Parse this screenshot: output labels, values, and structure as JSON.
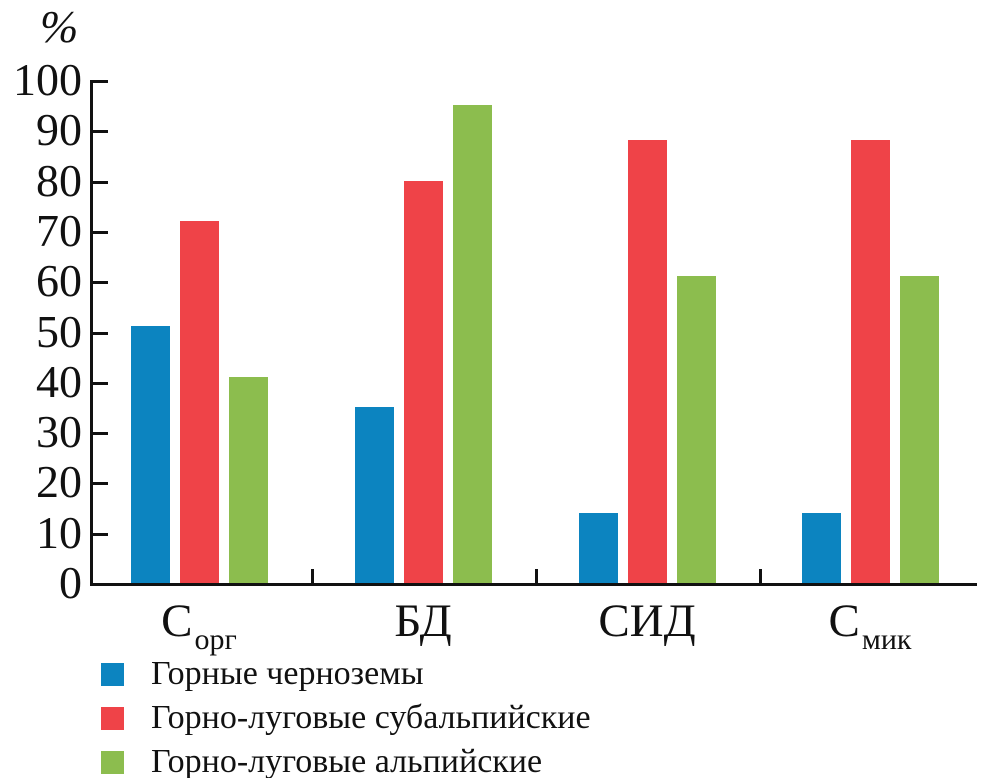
{
  "chart_data": {
    "type": "bar",
    "title": "",
    "ylabel": "%",
    "xlabel": "",
    "ylim": [
      0,
      100
    ],
    "yticks": [
      0,
      10,
      20,
      30,
      40,
      50,
      60,
      70,
      80,
      90,
      100
    ],
    "grid": false,
    "legend_position": "bottom-left",
    "axis_color": "#111111",
    "categories": [
      {
        "main": "С",
        "sub": "орг"
      },
      {
        "main": "БД",
        "sub": ""
      },
      {
        "main": "СИД",
        "sub": ""
      },
      {
        "main": "С",
        "sub": "мик"
      }
    ],
    "series": [
      {
        "name": "Горные черноземы",
        "color": "#0c84c0",
        "values": [
          51,
          35,
          14,
          14
        ]
      },
      {
        "name": "Горно-луговые субальпийские",
        "color": "#ef4348",
        "values": [
          72,
          80,
          88,
          88
        ]
      },
      {
        "name": "Горно-луговые альпийские",
        "color": "#8cbd4e",
        "values": [
          41,
          95,
          61,
          61
        ]
      }
    ]
  }
}
